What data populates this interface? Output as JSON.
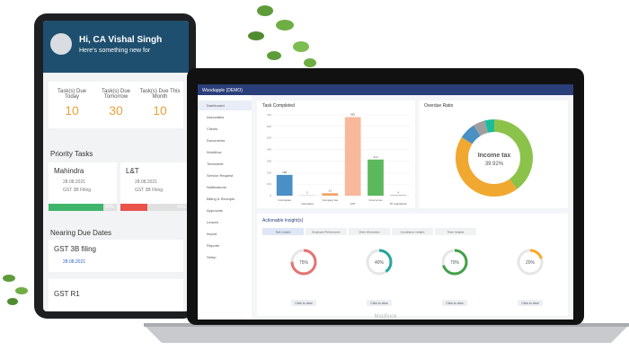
{
  "tablet": {
    "greeting": "Hi, CA Vishal Singh",
    "subtitle": "Here's something new for",
    "stats": [
      {
        "label": "Task(s) Due Today",
        "value": "10"
      },
      {
        "label": "Task(s) Due Tomorrow",
        "value": "30"
      },
      {
        "label": "Task(s) Due This Month",
        "value": "10"
      }
    ],
    "priority_title": "Priority Tasks",
    "priority": [
      {
        "company": "Mahindra",
        "date": "28.08.2021",
        "task": "GST 3B Filing",
        "progress": 80,
        "progress_label": "80%",
        "color": "#3fb56b"
      },
      {
        "company": "L&T",
        "date": "28.08.2021",
        "task": "GST 3B Filing",
        "progress": 40,
        "progress_label": "40%",
        "color": "#e8534a"
      }
    ],
    "due_title": "Nearing Due Dates",
    "due": [
      {
        "task": "GST 3B filing",
        "date": "28.08.2021"
      },
      {
        "task": "GST R1"
      }
    ]
  },
  "laptop": {
    "brand": "Woodapple (DEMO)",
    "menu": [
      "Dashboard",
      "Associates",
      "Clients",
      "Documents",
      "Workflow",
      "Timesheet",
      "Service Request",
      "Notifications",
      "Billing & Receipts",
      "Approvals",
      "Leaves",
      "Import",
      "Reports",
      "Setup"
    ],
    "task_chart": {
      "type": "bar",
      "title": "Task Completed",
      "categories": [
        "Incomplete",
        "Cancelled",
        "Company tax",
        "GST",
        "Income tax",
        "TP registration"
      ],
      "values": [
        180,
        2,
        21,
        681,
        313,
        4
      ],
      "colors": [
        "#4a8fc6",
        "#9aa5b1",
        "#f4a261",
        "#f7b89b",
        "#5cb85c",
        "#7f8c8d"
      ],
      "ylim": [
        0,
        700
      ],
      "yticks": [
        0,
        100,
        200,
        300,
        400,
        500,
        600,
        700
      ]
    },
    "overdue": {
      "type": "pie",
      "title": "Overdue Ratio",
      "center_label": "Income tax",
      "center_value": "39.92%",
      "values": [
        39.92,
        44,
        7,
        5,
        4.08
      ],
      "colors": [
        "#8bc34a",
        "#f0a830",
        "#4a90c2",
        "#9e9e9e",
        "#1abc9c"
      ]
    },
    "insights": {
      "title": "Actionable Insight(s)",
      "tabs": [
        "Task Insights",
        "Employee Performance",
        "Client Information",
        "Compliance Insights",
        "Team Insights"
      ],
      "gauges": [
        {
          "value": 75,
          "label": "75%",
          "color": "#e57373",
          "action": "Click to view"
        },
        {
          "value": 40,
          "label": "40%",
          "color": "#26a69a",
          "action": "Click to view"
        },
        {
          "value": 70,
          "label": "70%",
          "color": "#43a047",
          "action": "Click to view"
        },
        {
          "value": 20,
          "label": "20%",
          "color": "#ffa726",
          "action": "Click to view"
        }
      ]
    },
    "device": "MacBook"
  }
}
